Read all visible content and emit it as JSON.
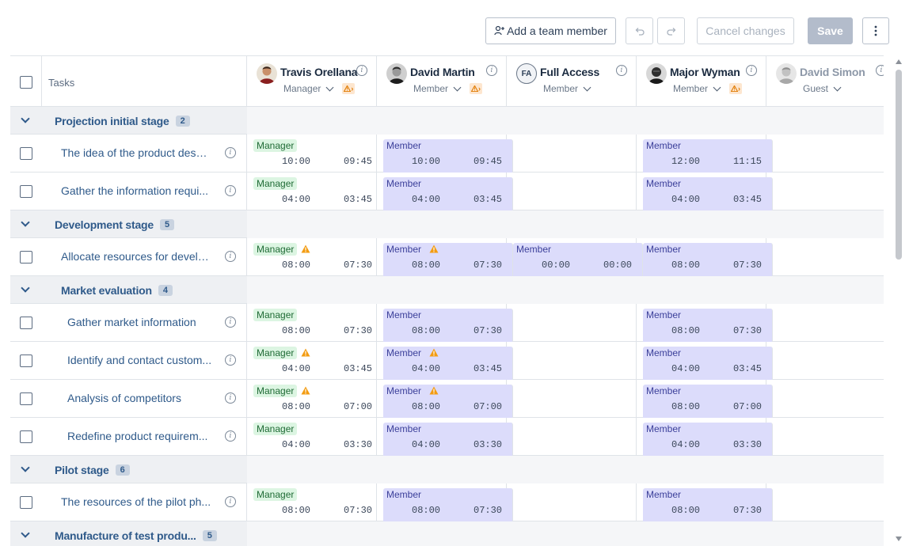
{
  "toolbar": {
    "add_member_label": "Add a team member",
    "cancel_label": "Cancel changes",
    "save_label": "Save"
  },
  "grid": {
    "tasks_header": "Tasks",
    "members": [
      {
        "name": "Travis Orellana",
        "role": "Manager",
        "warning": true,
        "avatar": "photo"
      },
      {
        "name": "David Martin",
        "role": "Member",
        "warning": true,
        "avatar": "photo"
      },
      {
        "name": "Full Access",
        "role": "Member",
        "warning": false,
        "avatar": "initials",
        "initials": "FA"
      },
      {
        "name": "Major Wyman",
        "role": "Member",
        "warning": true,
        "avatar": "photo"
      },
      {
        "name": "David Simon",
        "role": "Guest",
        "warning": false,
        "avatar": "photo"
      }
    ],
    "rows": [
      {
        "type": "group",
        "name": "Projection initial stage",
        "count": "2",
        "level": 0
      },
      {
        "type": "task",
        "name": "The idea of the product descr...",
        "level": 0,
        "cells": [
          {
            "role": "Manager",
            "a": "10:00",
            "b": "09:45",
            "warn": false
          },
          {
            "role": "Member",
            "a": "10:00",
            "b": "09:45",
            "warn": false
          },
          null,
          {
            "role": "Member",
            "a": "12:00",
            "b": "11:15",
            "warn": false
          },
          null
        ]
      },
      {
        "type": "task",
        "name": "Gather the information requi...",
        "level": 0,
        "cells": [
          {
            "role": "Manager",
            "a": "04:00",
            "b": "03:45",
            "warn": false
          },
          {
            "role": "Member",
            "a": "04:00",
            "b": "03:45",
            "warn": false
          },
          null,
          {
            "role": "Member",
            "a": "04:00",
            "b": "03:45",
            "warn": false
          },
          null
        ]
      },
      {
        "type": "group",
        "name": "Development stage",
        "count": "5",
        "level": 0
      },
      {
        "type": "task",
        "name": "Allocate resources for develo...",
        "level": 0,
        "cells": [
          {
            "role": "Manager",
            "a": "08:00",
            "b": "07:30",
            "warn": true
          },
          {
            "role": "Member",
            "a": "08:00",
            "b": "07:30",
            "warn": true
          },
          {
            "role": "Member",
            "a": "00:00",
            "b": "00:00",
            "warn": false
          },
          {
            "role": "Member",
            "a": "08:00",
            "b": "07:30",
            "warn": false
          },
          null
        ]
      },
      {
        "type": "group",
        "name": "Market evaluation",
        "count": "4",
        "level": 1
      },
      {
        "type": "task",
        "name": "Gather market information",
        "level": 1,
        "cells": [
          {
            "role": "Manager",
            "a": "08:00",
            "b": "07:30",
            "warn": false
          },
          {
            "role": "Member",
            "a": "08:00",
            "b": "07:30",
            "warn": false
          },
          null,
          {
            "role": "Member",
            "a": "08:00",
            "b": "07:30",
            "warn": false
          },
          null
        ]
      },
      {
        "type": "task",
        "name": "Identify and contact custom...",
        "level": 1,
        "cells": [
          {
            "role": "Manager",
            "a": "04:00",
            "b": "03:45",
            "warn": true
          },
          {
            "role": "Member",
            "a": "04:00",
            "b": "03:45",
            "warn": true
          },
          null,
          {
            "role": "Member",
            "a": "04:00",
            "b": "03:45",
            "warn": false
          },
          null
        ]
      },
      {
        "type": "task",
        "name": "Analysis of competitors",
        "level": 1,
        "cells": [
          {
            "role": "Manager",
            "a": "08:00",
            "b": "07:00",
            "warn": true
          },
          {
            "role": "Member",
            "a": "08:00",
            "b": "07:00",
            "warn": true
          },
          null,
          {
            "role": "Member",
            "a": "08:00",
            "b": "07:00",
            "warn": false
          },
          null
        ]
      },
      {
        "type": "task",
        "name": "Redefine product requirem...",
        "level": 1,
        "cells": [
          {
            "role": "Manager",
            "a": "04:00",
            "b": "03:30",
            "warn": false
          },
          {
            "role": "Member",
            "a": "04:00",
            "b": "03:30",
            "warn": false
          },
          null,
          {
            "role": "Member",
            "a": "04:00",
            "b": "03:30",
            "warn": false
          },
          null
        ]
      },
      {
        "type": "group",
        "name": "Pilot stage",
        "count": "6",
        "level": 0
      },
      {
        "type": "task",
        "name": "The resources of the pilot ph...",
        "level": 0,
        "cells": [
          {
            "role": "Manager",
            "a": "08:00",
            "b": "07:30",
            "warn": false
          },
          {
            "role": "Member",
            "a": "08:00",
            "b": "07:30",
            "warn": false
          },
          null,
          {
            "role": "Member",
            "a": "08:00",
            "b": "07:30",
            "warn": false
          },
          null
        ]
      },
      {
        "type": "group",
        "name": "Manufacture of test produ...",
        "count": "5",
        "level": 0
      }
    ]
  },
  "colors": {
    "accent_text": "#2f5a8a",
    "manager_badge_bg": "#dcf5e2",
    "member_badge_bg": "#dcdcfb",
    "warning": "#e07b00",
    "group_row_bg": "#eef0f3"
  }
}
